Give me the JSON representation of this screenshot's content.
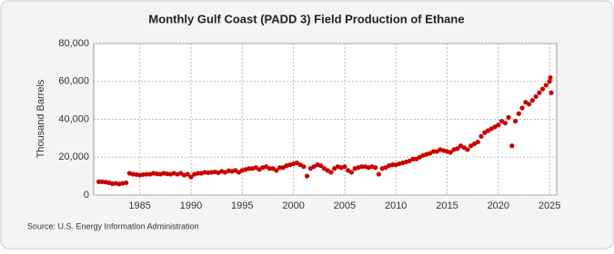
{
  "chart_data": {
    "type": "scatter",
    "title": "Monthly Gulf Coast (PADD 3) Field Production of Ethane",
    "y_label": "Thousand Barrels",
    "source": "Source: U.S. Energy Information Administration",
    "color": "#cc0000",
    "grid": true,
    "xlim": [
      1980.5,
      2025.7
    ],
    "xticks": [
      1985,
      1990,
      1995,
      2000,
      2005,
      2010,
      2015,
      2020,
      2025
    ],
    "ylim": [
      0,
      80000
    ],
    "yticks": [
      0,
      {
        "value": 20000,
        "label": "20,000"
      },
      {
        "value": 40000,
        "label": "40,000"
      },
      {
        "value": 60000,
        "label": "60,000"
      },
      {
        "value": 80000,
        "label": "80,000"
      }
    ],
    "x": [
      1981,
      1981.33,
      1981.67,
      1982,
      1982.33,
      1982.67,
      1983,
      1983.33,
      1983.67,
      1984,
      1984.33,
      1984.67,
      1985,
      1985.33,
      1985.67,
      1986,
      1986.33,
      1986.67,
      1987,
      1987.33,
      1987.67,
      1988,
      1988.33,
      1988.67,
      1989,
      1989.33,
      1989.67,
      1990,
      1990.33,
      1990.67,
      1991,
      1991.33,
      1991.67,
      1992,
      1992.33,
      1992.67,
      1993,
      1993.33,
      1993.67,
      1994,
      1994.33,
      1994.67,
      1995,
      1995.33,
      1995.67,
      1996,
      1996.33,
      1996.67,
      1997,
      1997.33,
      1997.67,
      1998,
      1998.33,
      1998.67,
      1999,
      1999.33,
      1999.67,
      2000,
      2000.33,
      2000.67,
      2001,
      2001.33,
      2001.67,
      2002,
      2002.33,
      2002.67,
      2003,
      2003.33,
      2003.67,
      2004,
      2004.33,
      2004.67,
      2005,
      2005.33,
      2005.67,
      2006,
      2006.33,
      2006.67,
      2007,
      2007.33,
      2007.67,
      2008,
      2008.33,
      2008.67,
      2009,
      2009.33,
      2009.67,
      2010,
      2010.33,
      2010.67,
      2011,
      2011.33,
      2011.67,
      2012,
      2012.33,
      2012.67,
      2013,
      2013.33,
      2013.67,
      2014,
      2014.33,
      2014.67,
      2015,
      2015.33,
      2015.67,
      2016,
      2016.33,
      2016.67,
      2017,
      2017.33,
      2017.67,
      2018,
      2018.33,
      2018.67,
      2019,
      2019.33,
      2019.67,
      2020,
      2020.33,
      2020.67,
      2021,
      2021.33,
      2021.67,
      2022,
      2022.33,
      2022.67,
      2023,
      2023.33,
      2023.67,
      2024,
      2024.33,
      2024.67,
      2025,
      2025.08,
      2025.17
    ],
    "values": [
      7000,
      7000,
      6800,
      6500,
      6000,
      6200,
      5800,
      6200,
      6500,
      11500,
      11000,
      10800,
      10500,
      10800,
      11000,
      11000,
      11500,
      11200,
      11000,
      11500,
      11200,
      11000,
      11500,
      11000,
      11500,
      10500,
      11000,
      9500,
      11000,
      11500,
      11500,
      12000,
      11800,
      12000,
      12200,
      11800,
      12500,
      12000,
      12800,
      12500,
      13000,
      12000,
      13000,
      13500,
      14000,
      14000,
      14500,
      13500,
      14500,
      15000,
      14000,
      14000,
      13000,
      14500,
      14500,
      15500,
      16000,
      16500,
      17000,
      16000,
      15000,
      10000,
      14000,
      15000,
      16000,
      15500,
      14000,
      13000,
      12000,
      14000,
      15000,
      14500,
      15000,
      13000,
      12000,
      14000,
      14500,
      15000,
      15000,
      14500,
      15000,
      14500,
      11000,
      14000,
      14500,
      15500,
      16000,
      16000,
      16500,
      17000,
      17500,
      18000,
      19000,
      19000,
      20000,
      21000,
      21500,
      22000,
      23000,
      23000,
      24000,
      23500,
      23000,
      22500,
      24000,
      24500,
      26000,
      25000,
      24000,
      26000,
      27000,
      28000,
      31000,
      33000,
      34000,
      35000,
      36000,
      37000,
      39000,
      38000,
      41000,
      26000,
      39000,
      43000,
      46000,
      49000,
      48000,
      50000,
      52000,
      54000,
      56000,
      58000,
      60000,
      62000,
      54000
    ]
  }
}
